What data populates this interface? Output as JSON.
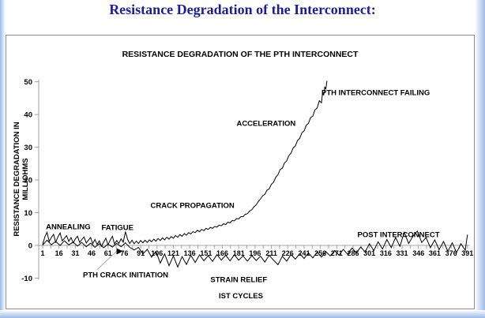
{
  "page": {
    "title": "Resistance Degradation of the Interconnect:",
    "title_color": "#1c1c9e"
  },
  "chart_data": {
    "type": "line",
    "title": "RESISTANCE DEGRADATION OF THE PTH INTERCONNECT",
    "xlabel": "IST CYCLES",
    "ylabel": "RESISTANCE DEGRADATION IN MILLIOHMS",
    "ylabel_lines": [
      "RESISTANCE DEGRADATION IN",
      "MILLIOHMS"
    ],
    "xlim": [
      1,
      391
    ],
    "ylim": [
      -10,
      50
    ],
    "x_ticks": [
      1,
      16,
      31,
      46,
      61,
      76,
      91,
      106,
      121,
      136,
      151,
      166,
      181,
      196,
      211,
      226,
      241,
      256,
      271,
      286,
      301,
      316,
      331,
      346,
      361,
      376,
      391
    ],
    "y_ticks": [
      -10,
      0,
      10,
      20,
      30,
      40,
      50
    ],
    "grid": false,
    "legend": "none",
    "line_color": "#000000",
    "axis_color": "#a0a0a0",
    "series": [
      {
        "name": "PTH",
        "points": [
          [
            1,
            0.3
          ],
          [
            3,
            2.6
          ],
          [
            5,
            4.0
          ],
          [
            7,
            1.2
          ],
          [
            9,
            2.4
          ],
          [
            11,
            3.4
          ],
          [
            13,
            1.0
          ],
          [
            15,
            2.6
          ],
          [
            17,
            3.8
          ],
          [
            19,
            1.4
          ],
          [
            21,
            2.2
          ],
          [
            23,
            3.0
          ],
          [
            25,
            1.2
          ],
          [
            27,
            2.4
          ],
          [
            29,
            0.8
          ],
          [
            31,
            2.0
          ],
          [
            33,
            2.8
          ],
          [
            35,
            0.9
          ],
          [
            37,
            1.8
          ],
          [
            39,
            2.6
          ],
          [
            41,
            0.7
          ],
          [
            43,
            1.6
          ],
          [
            45,
            2.4
          ],
          [
            47,
            0.5
          ],
          [
            49,
            1.8
          ],
          [
            51,
            0.3
          ],
          [
            53,
            1.4
          ],
          [
            55,
            -0.3
          ],
          [
            57,
            1.0
          ],
          [
            59,
            2.2
          ],
          [
            61,
            0.2
          ],
          [
            63,
            1.6
          ],
          [
            65,
            2.8
          ],
          [
            67,
            0.4
          ],
          [
            69,
            1.5
          ],
          [
            71,
            0.6
          ],
          [
            73,
            2.0
          ],
          [
            75,
            1.0
          ],
          [
            77,
            4.2
          ],
          [
            79,
            1.8
          ],
          [
            81,
            0.6
          ],
          [
            83,
            1.6
          ],
          [
            85,
            0.5
          ],
          [
            87,
            1.3
          ],
          [
            89,
            0.6
          ],
          [
            91,
            1.5
          ],
          [
            93,
            0.8
          ],
          [
            95,
            1.6
          ],
          [
            97,
            0.9
          ],
          [
            99,
            1.7
          ],
          [
            101,
            1.1
          ],
          [
            103,
            1.9
          ],
          [
            105,
            1.3
          ],
          [
            107,
            2.1
          ],
          [
            109,
            1.5
          ],
          [
            111,
            2.3
          ],
          [
            113,
            1.7
          ],
          [
            115,
            2.5
          ],
          [
            117,
            1.9
          ],
          [
            119,
            2.7
          ],
          [
            121,
            2.2
          ],
          [
            123,
            3.0
          ],
          [
            125,
            2.5
          ],
          [
            127,
            3.3
          ],
          [
            129,
            2.8
          ],
          [
            131,
            3.6
          ],
          [
            133,
            3.1
          ],
          [
            135,
            3.9
          ],
          [
            137,
            3.5
          ],
          [
            139,
            4.2
          ],
          [
            141,
            3.9
          ],
          [
            143,
            4.6
          ],
          [
            145,
            4.2
          ],
          [
            147,
            4.9
          ],
          [
            149,
            4.5
          ],
          [
            151,
            5.2
          ],
          [
            153,
            4.9
          ],
          [
            155,
            5.5
          ],
          [
            157,
            5.2
          ],
          [
            159,
            5.8
          ],
          [
            161,
            5.6
          ],
          [
            163,
            6.2
          ],
          [
            165,
            6.0
          ],
          [
            167,
            6.6
          ],
          [
            169,
            6.4
          ],
          [
            171,
            7.1
          ],
          [
            173,
            6.9
          ],
          [
            175,
            7.6
          ],
          [
            177,
            7.5
          ],
          [
            179,
            8.2
          ],
          [
            181,
            8.1
          ],
          [
            183,
            8.8
          ],
          [
            185,
            8.8
          ],
          [
            187,
            9.5
          ],
          [
            189,
            9.7
          ],
          [
            191,
            10.5
          ],
          [
            193,
            10.9
          ],
          [
            195,
            11.8
          ],
          [
            197,
            12.4
          ],
          [
            199,
            13.4
          ],
          [
            201,
            14.2
          ],
          [
            203,
            15.2
          ],
          [
            205,
            15.6
          ],
          [
            207,
            16.9
          ],
          [
            209,
            17.3
          ],
          [
            211,
            18.7
          ],
          [
            213,
            19.3
          ],
          [
            215,
            20.8
          ],
          [
            217,
            21.6
          ],
          [
            219,
            23.2
          ],
          [
            221,
            23.6
          ],
          [
            223,
            25.2
          ],
          [
            225,
            25.8
          ],
          [
            227,
            27.4
          ],
          [
            229,
            28.2
          ],
          [
            231,
            29.8
          ],
          [
            233,
            30.4
          ],
          [
            235,
            32.1
          ],
          [
            237,
            32.7
          ],
          [
            239,
            34.4
          ],
          [
            241,
            35.0
          ],
          [
            243,
            36.7
          ],
          [
            245,
            37.3
          ],
          [
            247,
            39.1
          ],
          [
            249,
            39.5
          ],
          [
            251,
            41.4
          ],
          [
            253,
            42.0
          ],
          [
            255,
            44.2
          ],
          [
            257,
            43.6
          ],
          [
            258,
            46.8
          ],
          [
            259,
            45.9
          ],
          [
            260,
            48.5
          ],
          [
            261,
            47.7
          ],
          [
            262,
            50.3
          ]
        ]
      },
      {
        "name": "POST INTERCONNECT",
        "points": [
          [
            1,
            0.1
          ],
          [
            5,
            1.6
          ],
          [
            9,
            0.2
          ],
          [
            13,
            1.2
          ],
          [
            17,
            0.0
          ],
          [
            21,
            1.4
          ],
          [
            25,
            0.2
          ],
          [
            29,
            1.0
          ],
          [
            33,
            -0.2
          ],
          [
            37,
            0.9
          ],
          [
            41,
            -0.4
          ],
          [
            45,
            0.7
          ],
          [
            49,
            -0.6
          ],
          [
            53,
            0.5
          ],
          [
            57,
            -0.7
          ],
          [
            61,
            0.4
          ],
          [
            65,
            -0.5
          ],
          [
            69,
            0.6
          ],
          [
            73,
            -0.4
          ],
          [
            77,
            0.8
          ],
          [
            81,
            -0.6
          ],
          [
            85,
            -1.4
          ],
          [
            89,
            -0.6
          ],
          [
            93,
            -2.6
          ],
          [
            97,
            -1.2
          ],
          [
            101,
            -3.6
          ],
          [
            105,
            -1.8
          ],
          [
            109,
            -5.4
          ],
          [
            113,
            -2.6
          ],
          [
            117,
            -6.2
          ],
          [
            121,
            -3.2
          ],
          [
            125,
            -6.6
          ],
          [
            129,
            -3.4
          ],
          [
            133,
            -5.8
          ],
          [
            137,
            -3.0
          ],
          [
            141,
            -5.2
          ],
          [
            145,
            -2.9
          ],
          [
            149,
            -4.7
          ],
          [
            153,
            -3.1
          ],
          [
            157,
            -4.9
          ],
          [
            161,
            -2.8
          ],
          [
            165,
            -4.5
          ],
          [
            169,
            -3.0
          ],
          [
            173,
            -4.7
          ],
          [
            177,
            -2.9
          ],
          [
            181,
            -4.5
          ],
          [
            185,
            -3.2
          ],
          [
            189,
            -4.8
          ],
          [
            193,
            -3.1
          ],
          [
            197,
            -4.6
          ],
          [
            201,
            -3.3
          ],
          [
            205,
            -5.1
          ],
          [
            209,
            -3.0
          ],
          [
            213,
            -4.5
          ],
          [
            217,
            -5.9
          ],
          [
            221,
            -3.3
          ],
          [
            225,
            -4.8
          ],
          [
            229,
            -2.8
          ],
          [
            233,
            -4.2
          ],
          [
            237,
            -2.5
          ],
          [
            241,
            -4.0
          ],
          [
            245,
            -2.3
          ],
          [
            249,
            -3.8
          ],
          [
            253,
            -2.1
          ],
          [
            257,
            -3.6
          ],
          [
            261,
            -1.9
          ],
          [
            265,
            -3.2
          ],
          [
            269,
            -1.6
          ],
          [
            273,
            -3.0
          ],
          [
            277,
            -1.2
          ],
          [
            281,
            -2.7
          ],
          [
            285,
            -0.8
          ],
          [
            289,
            -2.3
          ],
          [
            293,
            -0.5
          ],
          [
            297,
            -2.0
          ],
          [
            301,
            0.5
          ],
          [
            305,
            -1.6
          ],
          [
            309,
            1.1
          ],
          [
            313,
            -1.1
          ],
          [
            317,
            1.8
          ],
          [
            321,
            -0.7
          ],
          [
            325,
            2.4
          ],
          [
            329,
            -0.3
          ],
          [
            333,
            4.0
          ],
          [
            337,
            0.6
          ],
          [
            341,
            2.8
          ],
          [
            345,
            4.4
          ],
          [
            349,
            0.9
          ],
          [
            353,
            2.4
          ],
          [
            357,
            -0.7
          ],
          [
            361,
            1.7
          ],
          [
            365,
            -1.3
          ],
          [
            369,
            1.2
          ],
          [
            373,
            -1.8
          ],
          [
            377,
            0.8
          ],
          [
            381,
            -2.2
          ],
          [
            385,
            0.5
          ],
          [
            389,
            -1.5
          ],
          [
            391,
            3.3
          ]
        ]
      }
    ],
    "annotations": [
      {
        "text": "ANNEALING",
        "x": 4,
        "y": 5.0
      },
      {
        "text": "FATIGUE",
        "x": 55,
        "y": 4.7
      },
      {
        "text": "PTH CRACK INITIATION",
        "x": 38,
        "y": -9.8
      },
      {
        "text": "CRACK PROPAGATION",
        "x": 100,
        "y": 11.4
      },
      {
        "text": "STRAIN RELIEF",
        "x": 155,
        "y": -11.2
      },
      {
        "text": "ACCELERATION",
        "x": 179,
        "y": 36.5
      },
      {
        "text": "PTH INTERCONNECT FAILING",
        "x": 257,
        "y": 45.9
      },
      {
        "text": "POST INTERCONNECT",
        "x": 290,
        "y": 2.5
      }
    ],
    "arrow": {
      "from": [
        51,
        -7.4
      ],
      "to": [
        71,
        -1.8
      ]
    }
  }
}
